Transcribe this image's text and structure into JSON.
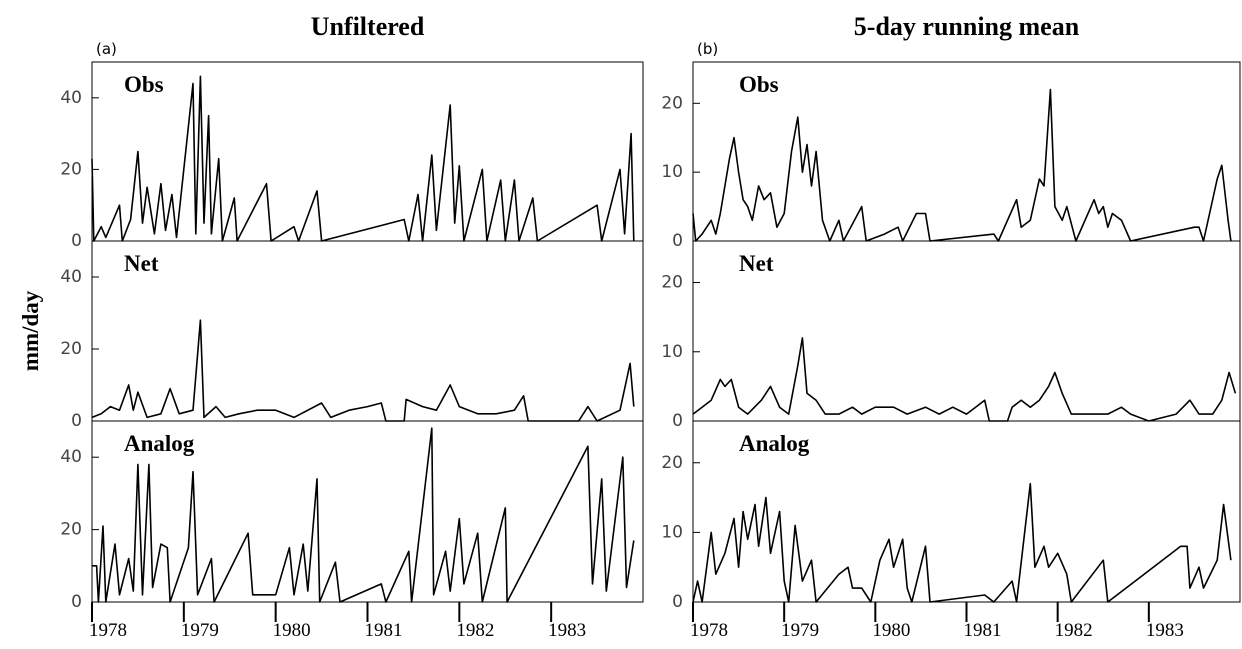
{
  "chart_data": [
    {
      "type": "line",
      "title": "Unfiltered",
      "tag": "(a)",
      "label": "Obs",
      "color": "#000000",
      "xlim": [
        1978,
        1984
      ],
      "ylim": [
        0,
        50
      ],
      "yticks": [
        0,
        20,
        40
      ],
      "x": [
        1978.0,
        1978.02,
        1978.1,
        1978.15,
        1978.3,
        1978.33,
        1978.42,
        1978.5,
        1978.55,
        1978.6,
        1978.68,
        1978.75,
        1978.8,
        1978.87,
        1978.92,
        1979.1,
        1979.13,
        1979.18,
        1979.22,
        1979.27,
        1979.3,
        1979.38,
        1979.42,
        1979.55,
        1979.58,
        1979.9,
        1979.95,
        1980.2,
        1980.25,
        1980.45,
        1980.5,
        1981.4,
        1981.45,
        1981.55,
        1981.6,
        1981.7,
        1981.75,
        1981.9,
        1981.95,
        1982.0,
        1982.05,
        1982.25,
        1982.3,
        1982.45,
        1982.5,
        1982.6,
        1982.65,
        1982.8,
        1982.85,
        1983.5,
        1983.55,
        1983.75,
        1983.8,
        1983.87,
        1983.9
      ],
      "values": [
        23,
        0,
        4,
        1,
        10,
        0,
        6,
        25,
        5,
        15,
        2,
        16,
        3,
        13,
        1,
        44,
        2,
        46,
        5,
        35,
        2,
        23,
        0,
        12,
        0,
        16,
        0,
        4,
        0,
        14,
        0,
        6,
        0,
        13,
        0,
        24,
        3,
        38,
        5,
        21,
        0,
        20,
        0,
        17,
        0,
        17,
        0,
        12,
        0,
        10,
        0,
        20,
        2,
        30,
        0
      ]
    },
    {
      "type": "line",
      "title": "5-day running mean",
      "tag": "(b)",
      "label": "Obs",
      "color": "#000000",
      "xlim": [
        1978,
        1984
      ],
      "ylim": [
        0,
        26
      ],
      "yticks": [
        0,
        10,
        20
      ],
      "x": [
        1978.0,
        1978.03,
        1978.1,
        1978.2,
        1978.25,
        1978.3,
        1978.4,
        1978.45,
        1978.5,
        1978.55,
        1978.6,
        1978.65,
        1978.72,
        1978.78,
        1978.85,
        1978.92,
        1979.0,
        1979.08,
        1979.15,
        1979.2,
        1979.25,
        1979.3,
        1979.35,
        1979.42,
        1979.5,
        1979.6,
        1979.65,
        1979.85,
        1979.9,
        1980.1,
        1980.25,
        1980.3,
        1980.45,
        1980.55,
        1980.6,
        1981.3,
        1981.35,
        1981.55,
        1981.6,
        1981.7,
        1981.8,
        1981.85,
        1981.92,
        1981.97,
        1982.05,
        1982.1,
        1982.2,
        1982.4,
        1982.45,
        1982.5,
        1982.55,
        1982.6,
        1982.7,
        1982.8,
        1983.5,
        1983.55,
        1983.6,
        1983.75,
        1983.8,
        1983.87,
        1983.9
      ],
      "values": [
        4,
        0,
        1,
        3,
        1,
        4,
        12,
        15,
        10,
        6,
        5,
        3,
        8,
        6,
        7,
        2,
        4,
        13,
        18,
        10,
        14,
        8,
        13,
        3,
        0,
        3,
        0,
        5,
        0,
        1,
        2,
        0,
        4,
        4,
        0,
        1,
        0,
        6,
        2,
        3,
        9,
        8,
        22,
        5,
        3,
        5,
        0,
        6,
        4,
        5,
        2,
        4,
        3,
        0,
        2,
        2,
        0,
        9,
        11,
        3,
        0
      ]
    },
    {
      "type": "line",
      "label": "Net",
      "ylabel": "mm/day",
      "color": "#000000",
      "xlim": [
        1978,
        1984
      ],
      "ylim": [
        0,
        50
      ],
      "yticks": [
        0,
        20,
        40
      ],
      "x": [
        1978.0,
        1978.1,
        1978.2,
        1978.3,
        1978.4,
        1978.45,
        1978.5,
        1978.6,
        1978.75,
        1978.85,
        1978.95,
        1979.1,
        1979.18,
        1979.22,
        1979.35,
        1979.45,
        1979.6,
        1979.8,
        1980.0,
        1980.2,
        1980.5,
        1980.6,
        1980.8,
        1981.0,
        1981.15,
        1981.2,
        1981.4,
        1981.42,
        1981.6,
        1981.75,
        1981.9,
        1982.0,
        1982.2,
        1982.4,
        1982.6,
        1982.7,
        1982.75,
        1983.3,
        1983.4,
        1983.5,
        1983.75,
        1983.86,
        1983.9
      ],
      "values": [
        1,
        2,
        4,
        3,
        10,
        3,
        8,
        1,
        2,
        9,
        2,
        3,
        28,
        1,
        4,
        1,
        2,
        3,
        3,
        1,
        5,
        1,
        3,
        4,
        5,
        0,
        0,
        6,
        4,
        3,
        10,
        4,
        2,
        2,
        3,
        7,
        0,
        0,
        4,
        0,
        3,
        16,
        4
      ]
    },
    {
      "type": "line",
      "label": "Net",
      "color": "#000000",
      "xlim": [
        1978,
        1984
      ],
      "ylim": [
        0,
        26
      ],
      "yticks": [
        0,
        10,
        20
      ],
      "x": [
        1978.0,
        1978.1,
        1978.2,
        1978.3,
        1978.35,
        1978.42,
        1978.5,
        1978.6,
        1978.75,
        1978.85,
        1978.95,
        1979.05,
        1979.15,
        1979.2,
        1979.25,
        1979.35,
        1979.45,
        1979.6,
        1979.75,
        1979.85,
        1980.0,
        1980.2,
        1980.35,
        1980.55,
        1980.7,
        1980.85,
        1981.0,
        1981.1,
        1981.2,
        1981.25,
        1981.45,
        1981.5,
        1981.6,
        1981.7,
        1981.8,
        1981.9,
        1981.97,
        1982.05,
        1982.15,
        1982.35,
        1982.55,
        1982.7,
        1982.8,
        1983.0,
        1983.3,
        1983.45,
        1983.55,
        1983.7,
        1983.8,
        1983.88,
        1983.95
      ],
      "values": [
        1,
        2,
        3,
        6,
        5,
        6,
        2,
        1,
        3,
        5,
        2,
        1,
        8,
        12,
        4,
        3,
        1,
        1,
        2,
        1,
        2,
        2,
        1,
        2,
        1,
        2,
        1,
        2,
        3,
        0,
        0,
        2,
        3,
        2,
        3,
        5,
        7,
        4,
        1,
        1,
        1,
        2,
        1,
        0,
        1,
        3,
        1,
        1,
        3,
        7,
        4
      ]
    },
    {
      "type": "line",
      "label": "Analog",
      "color": "#000000",
      "xlim": [
        1978,
        1984
      ],
      "ylim": [
        0,
        50
      ],
      "yticks": [
        0,
        20,
        40
      ],
      "xticks": [
        1978,
        1979,
        1980,
        1981,
        1982,
        1983
      ],
      "x": [
        1978.0,
        1978.05,
        1978.07,
        1978.12,
        1978.15,
        1978.25,
        1978.3,
        1978.4,
        1978.45,
        1978.5,
        1978.55,
        1978.62,
        1978.66,
        1978.75,
        1978.82,
        1978.85,
        1979.05,
        1979.1,
        1979.15,
        1979.3,
        1979.33,
        1979.7,
        1979.75,
        1980.0,
        1980.15,
        1980.2,
        1980.3,
        1980.35,
        1980.45,
        1980.48,
        1980.65,
        1980.7,
        1981.15,
        1981.2,
        1981.45,
        1981.48,
        1981.7,
        1981.72,
        1981.85,
        1981.9,
        1982.0,
        1982.05,
        1982.2,
        1982.25,
        1982.5,
        1982.52,
        1983.4,
        1983.45,
        1983.55,
        1983.6,
        1983.78,
        1983.82,
        1983.9
      ],
      "values": [
        10,
        10,
        0,
        21,
        0,
        16,
        2,
        12,
        3,
        38,
        2,
        38,
        4,
        16,
        15,
        0,
        15,
        36,
        2,
        12,
        0,
        19,
        2,
        2,
        15,
        2,
        16,
        3,
        34,
        0,
        11,
        0,
        5,
        0,
        14,
        0,
        48,
        2,
        14,
        3,
        23,
        5,
        19,
        0,
        26,
        0,
        43,
        5,
        34,
        3,
        40,
        4,
        17
      ]
    },
    {
      "type": "line",
      "label": "Analog",
      "color": "#000000",
      "xlim": [
        1978,
        1984
      ],
      "ylim": [
        0,
        26
      ],
      "yticks": [
        0,
        10,
        20
      ],
      "xticks": [
        1978,
        1979,
        1980,
        1981,
        1982,
        1983
      ],
      "x": [
        1978.0,
        1978.05,
        1978.1,
        1978.2,
        1978.25,
        1978.35,
        1978.45,
        1978.5,
        1978.55,
        1978.6,
        1978.68,
        1978.72,
        1978.8,
        1978.85,
        1978.95,
        1979.0,
        1979.05,
        1979.12,
        1979.2,
        1979.3,
        1979.35,
        1979.6,
        1979.7,
        1979.75,
        1979.85,
        1979.95,
        1980.05,
        1980.15,
        1980.2,
        1980.3,
        1980.35,
        1980.4,
        1980.55,
        1980.6,
        1981.2,
        1981.3,
        1981.5,
        1981.55,
        1981.7,
        1981.75,
        1981.85,
        1981.9,
        1982.0,
        1982.1,
        1982.15,
        1982.5,
        1982.55,
        1983.35,
        1983.42,
        1983.45,
        1983.55,
        1983.6,
        1983.75,
        1983.82,
        1983.9
      ],
      "values": [
        0,
        3,
        0,
        10,
        4,
        7,
        12,
        5,
        13,
        9,
        14,
        8,
        15,
        7,
        13,
        3,
        0,
        11,
        3,
        6,
        0,
        4,
        5,
        2,
        2,
        0,
        6,
        9,
        5,
        9,
        2,
        0,
        8,
        0,
        1,
        0,
        3,
        0,
        17,
        5,
        8,
        5,
        7,
        4,
        0,
        6,
        0,
        8,
        8,
        2,
        5,
        2,
        6,
        14,
        6
      ]
    }
  ]
}
